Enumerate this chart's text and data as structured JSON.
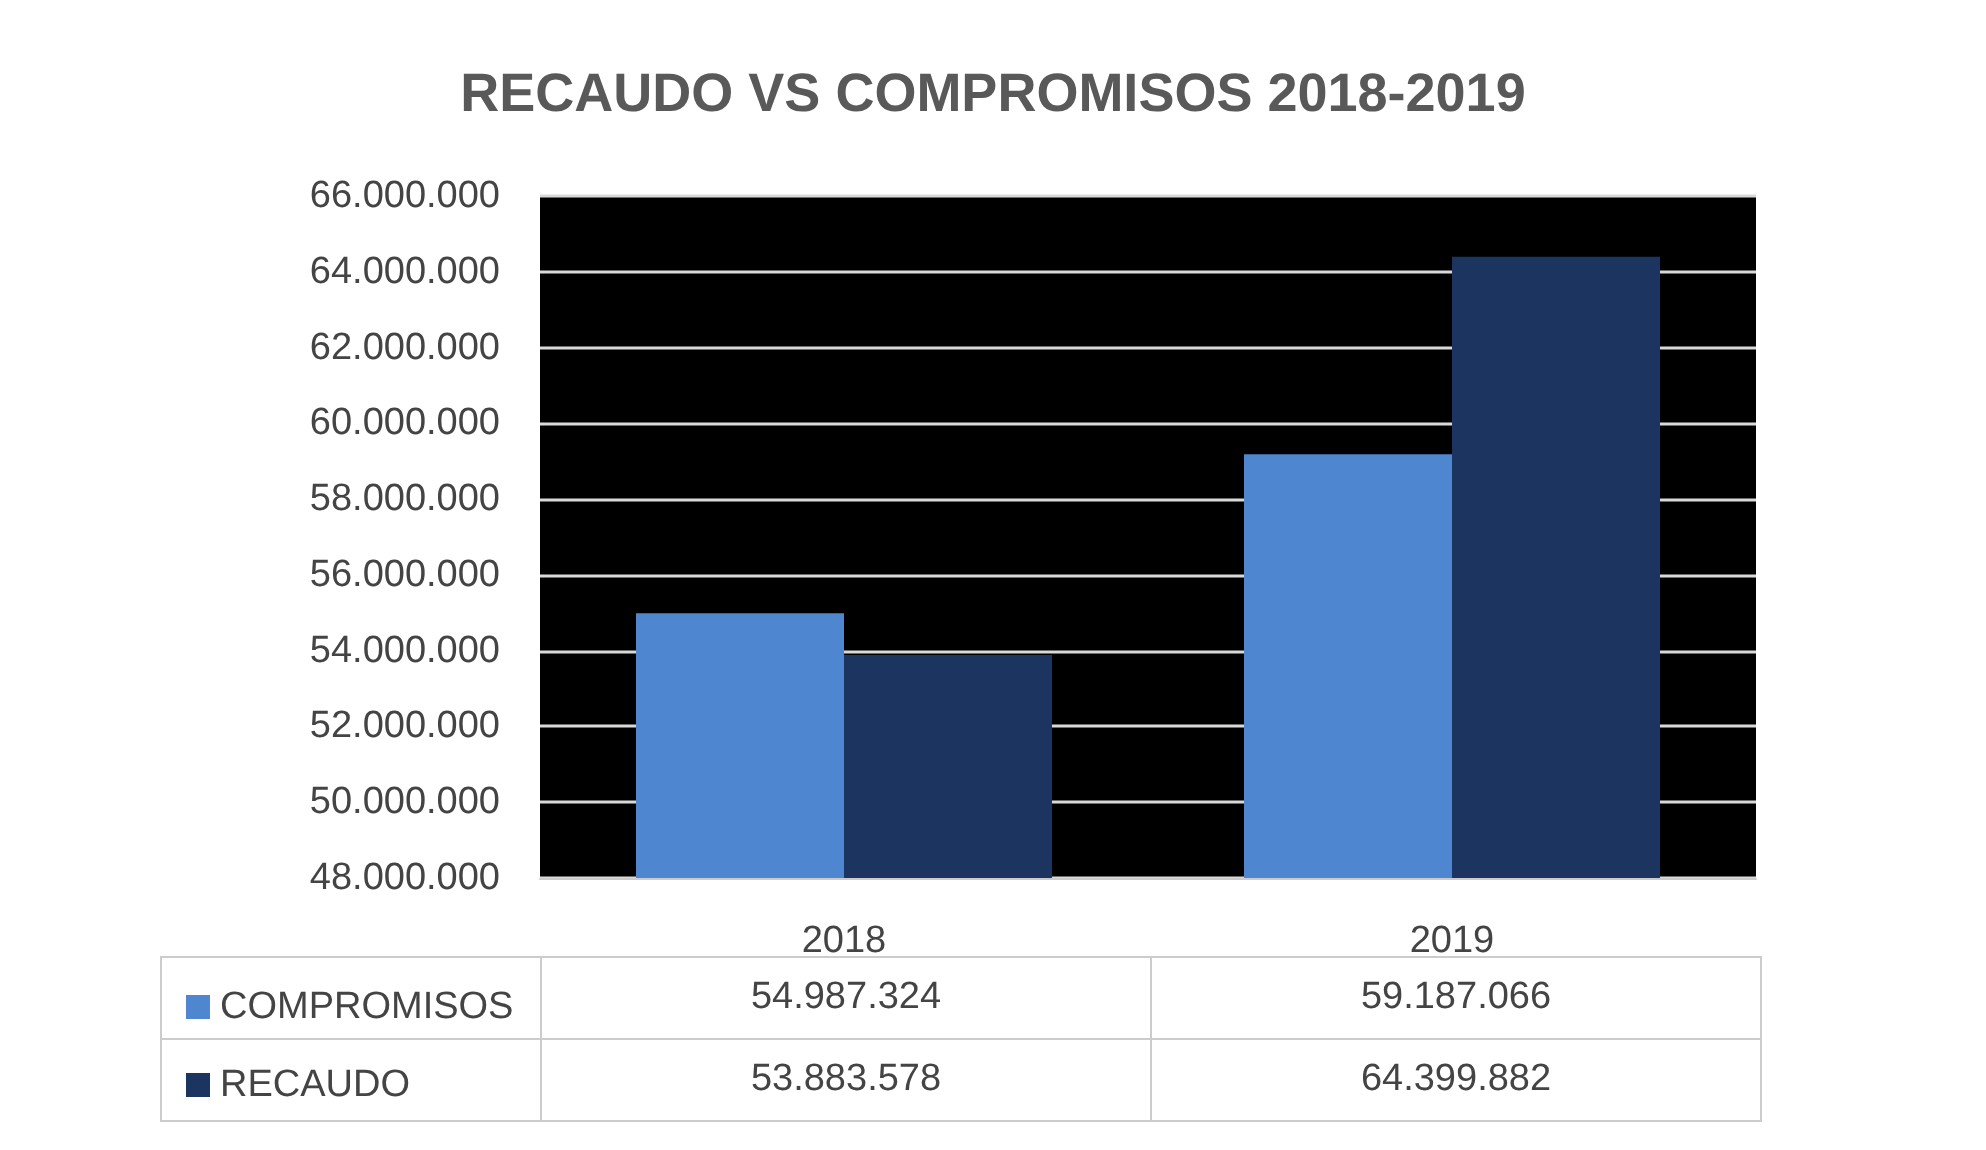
{
  "chart_data": {
    "type": "bar",
    "title": "RECAUDO VS COMPROMISOS 2018-2019",
    "categories": [
      "2018",
      "2019"
    ],
    "series": [
      {
        "name": "COMPROMISOS",
        "color": "#4f86d0",
        "values": [
          54987324,
          59187066
        ],
        "value_labels": [
          "54.987.324",
          "59.187.066"
        ]
      },
      {
        "name": "RECAUDO",
        "color": "#1b3560",
        "values": [
          53883578,
          64399882
        ],
        "value_labels": [
          "53.883.578",
          "64.399.882"
        ]
      }
    ],
    "ylim": [
      48000000,
      66000000
    ],
    "yticks": [
      {
        "value": 48000000,
        "label": "48.000.000"
      },
      {
        "value": 50000000,
        "label": "50.000.000"
      },
      {
        "value": 52000000,
        "label": "52.000.000"
      },
      {
        "value": 54000000,
        "label": "54.000.000"
      },
      {
        "value": 56000000,
        "label": "56.000.000"
      },
      {
        "value": 58000000,
        "label": "58.000.000"
      },
      {
        "value": 60000000,
        "label": "60.000.000"
      },
      {
        "value": 62000000,
        "label": "62.000.000"
      },
      {
        "value": 64000000,
        "label": "64.000.000"
      },
      {
        "value": 66000000,
        "label": "66.000.000"
      }
    ],
    "grid": "y",
    "legend": "bottom left"
  }
}
